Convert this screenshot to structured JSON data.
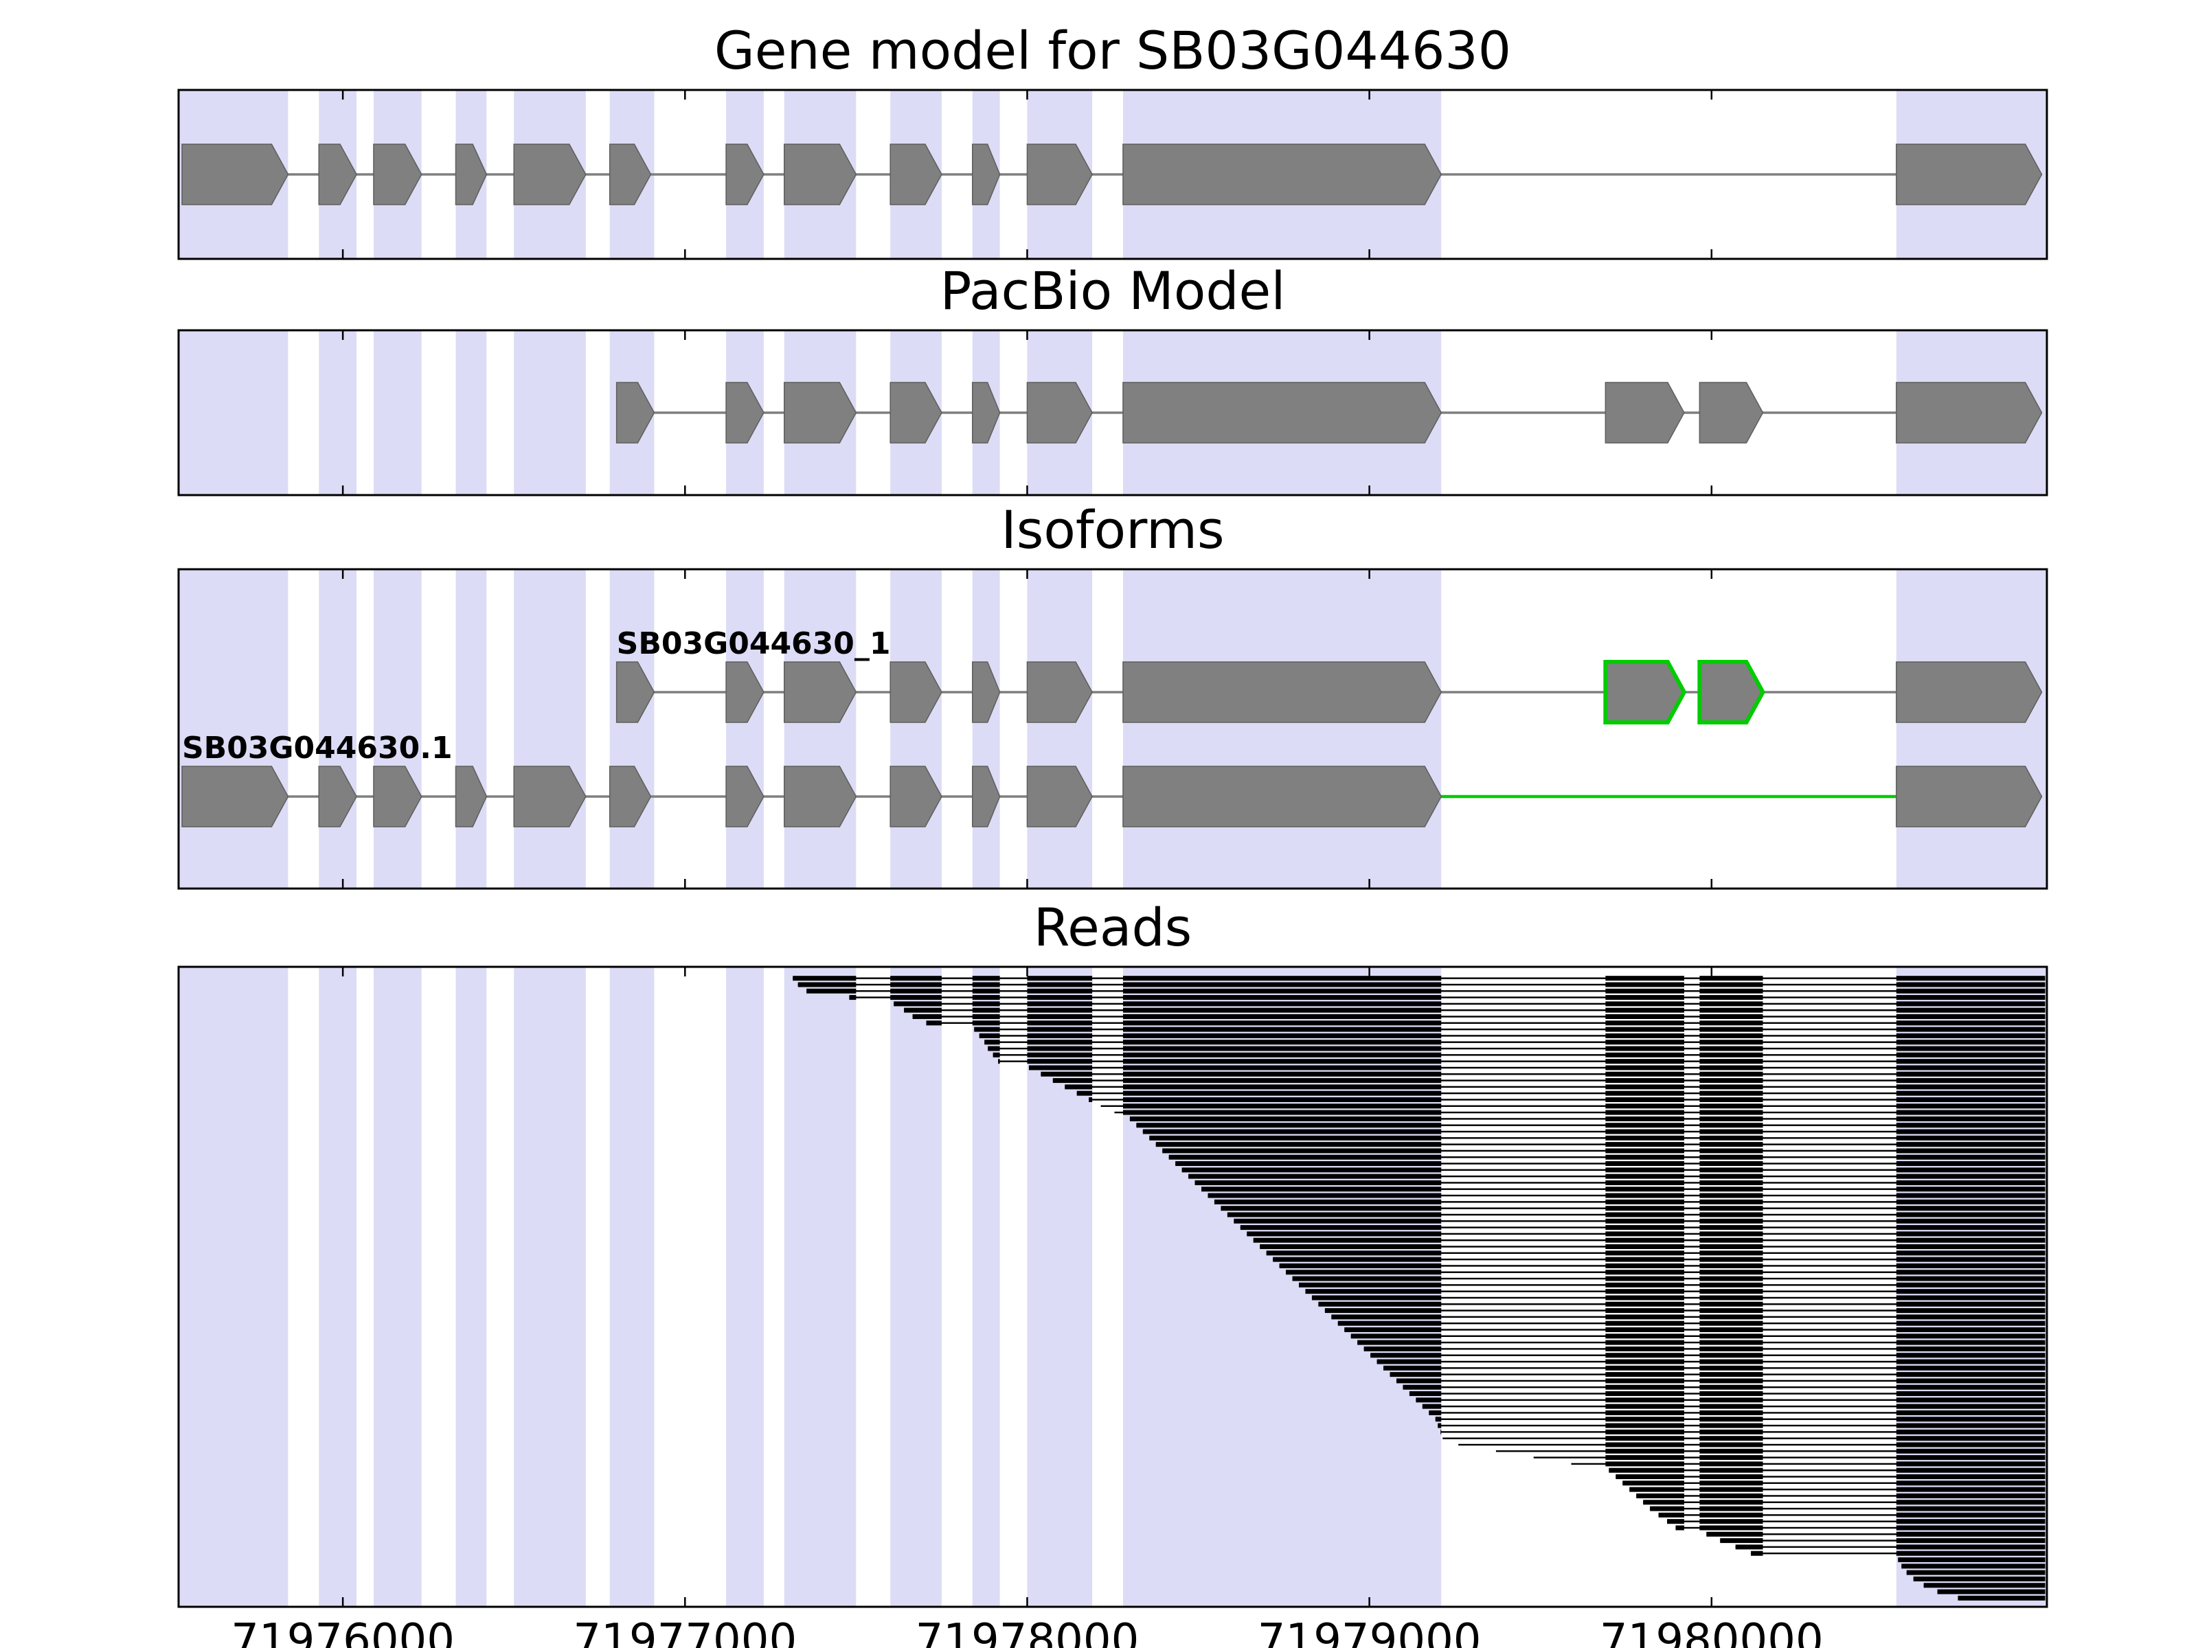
{
  "figure": {
    "background": "#ffffff",
    "panel_border_color": "#000000",
    "exon_fill": "#808080",
    "exon_edge": "#5e5e5e",
    "intron_color": "#7f7f7f",
    "highlight_color": "#00cc00",
    "stripe_color": "#dcdcf6",
    "read_color": "#000000"
  },
  "chart_data": {
    "type": "gene-structure-tracks",
    "title": "Gene model for SB03G044630",
    "xlabel": "",
    "ylabel": "",
    "grid": false,
    "legend": "none",
    "xlim": [
      71975520,
      71980980
    ],
    "x_ticks": [
      {
        "value": 71976000,
        "label": "71976000"
      },
      {
        "value": 71977000,
        "label": "71977000"
      },
      {
        "value": 71978000,
        "label": "71978000"
      },
      {
        "value": 71979000,
        "label": "71979000"
      },
      {
        "value": 71980000,
        "label": "71980000"
      }
    ],
    "background_stripes": [
      [
        71975520,
        71975840
      ],
      [
        71975930,
        71976040
      ],
      [
        71976090,
        71976230
      ],
      [
        71976330,
        71976420
      ],
      [
        71976500,
        71976710
      ],
      [
        71976780,
        71976910
      ],
      [
        71977120,
        71977230
      ],
      [
        71977290,
        71977500
      ],
      [
        71977600,
        71977750
      ],
      [
        71977840,
        71977920
      ],
      [
        71978000,
        71978190
      ],
      [
        71978280,
        71979210
      ],
      [
        71980540,
        71980980
      ]
    ],
    "panels": [
      {
        "title": "Gene model for SB03G044630",
        "tracks": [
          {
            "name": "gene-model",
            "exons": [
              [
                71975530,
                71975840
              ],
              [
                71975930,
                71976040
              ],
              [
                71976090,
                71976230
              ],
              [
                71976330,
                71976420
              ],
              [
                71976500,
                71976710
              ],
              [
                71976780,
                71976900
              ],
              [
                71977120,
                71977230
              ],
              [
                71977290,
                71977500
              ],
              [
                71977600,
                71977750
              ],
              [
                71977840,
                71977920
              ],
              [
                71978000,
                71978190
              ],
              [
                71978280,
                71979210
              ],
              [
                71980540,
                71980965
              ]
            ]
          }
        ]
      },
      {
        "title": "PacBio Model",
        "tracks": [
          {
            "name": "pacbio-model",
            "exons": [
              [
                71976800,
                71976910
              ],
              [
                71977120,
                71977230
              ],
              [
                71977290,
                71977500
              ],
              [
                71977600,
                71977750
              ],
              [
                71977840,
                71977920
              ],
              [
                71978000,
                71978190
              ],
              [
                71978280,
                71979210
              ],
              [
                71979690,
                71979920
              ],
              [
                71979965,
                71980150
              ],
              [
                71980540,
                71980965
              ]
            ]
          }
        ]
      },
      {
        "title": "Isoforms",
        "tracks": [
          {
            "name": "isoform-pacbio",
            "label": "SB03G044630_1",
            "exons": [
              [
                71976800,
                71976910
              ],
              [
                71977120,
                71977230
              ],
              [
                71977290,
                71977500
              ],
              [
                71977600,
                71977750
              ],
              [
                71977840,
                71977920
              ],
              [
                71978000,
                71978190
              ],
              [
                71978280,
                71979210
              ],
              [
                71979690,
                71979920
              ],
              [
                71979965,
                71980150
              ],
              [
                71980540,
                71980965
              ]
            ],
            "highlighted_exons": [
              7,
              8
            ]
          },
          {
            "name": "isoform-reference",
            "label": "SB03G044630.1",
            "exons": [
              [
                71975530,
                71975840
              ],
              [
                71975930,
                71976040
              ],
              [
                71976090,
                71976230
              ],
              [
                71976330,
                71976420
              ],
              [
                71976500,
                71976710
              ],
              [
                71976780,
                71976900
              ],
              [
                71977120,
                71977230
              ],
              [
                71977290,
                71977500
              ],
              [
                71977600,
                71977750
              ],
              [
                71977840,
                71977920
              ],
              [
                71978000,
                71978190
              ],
              [
                71978280,
                71979210
              ],
              [
                71980540,
                71980965
              ]
            ],
            "green_intron": [
              71979210,
              71980540
            ]
          }
        ]
      },
      {
        "title": "Reads",
        "reads": {
          "end": 71980975,
          "exon_model": [
            [
              71977120,
              71977230
            ],
            [
              71977290,
              71977500
            ],
            [
              71977600,
              71977750
            ],
            [
              71977840,
              71977920
            ],
            [
              71978000,
              71978190
            ],
            [
              71978280,
              71979210
            ],
            [
              71979690,
              71979920
            ],
            [
              71979965,
              71980150
            ],
            [
              71980540,
              71980980
            ]
          ],
          "starts": [
            71977315,
            71977330,
            71977355,
            71977480,
            71977610,
            71977640,
            71977665,
            71977705,
            71977845,
            71977860,
            71977875,
            71977885,
            71977900,
            71977915,
            71978005,
            71978040,
            71978075,
            71978110,
            71978145,
            71978180,
            71978215,
            71978255,
            71978300,
            71978319,
            71978338,
            71978357,
            71978376,
            71978395,
            71978414,
            71978433,
            71978452,
            71978471,
            71978490,
            71978509,
            71978528,
            71978547,
            71978566,
            71978585,
            71978604,
            71978623,
            71978642,
            71978661,
            71978680,
            71978699,
            71978718,
            71978737,
            71978756,
            71978775,
            71978794,
            71978813,
            71978832,
            71978851,
            71978870,
            71978889,
            71978908,
            71978927,
            71978946,
            71978965,
            71978984,
            71979003,
            71979022,
            71979041,
            71979060,
            71979079,
            71979098,
            71979117,
            71979136,
            71979155,
            71979174,
            71979193,
            71979200,
            71979208,
            71979214,
            71979260,
            71979370,
            71979480,
            71979590,
            71979700,
            71979720,
            71979740,
            71979760,
            71979780,
            71979800,
            71979820,
            71979845,
            71979870,
            71979895,
            71979985,
            71980025,
            71980070,
            71980115,
            71980545,
            71980555,
            71980570,
            71980590,
            71980620,
            71980660,
            71980720
          ]
        }
      }
    ]
  }
}
